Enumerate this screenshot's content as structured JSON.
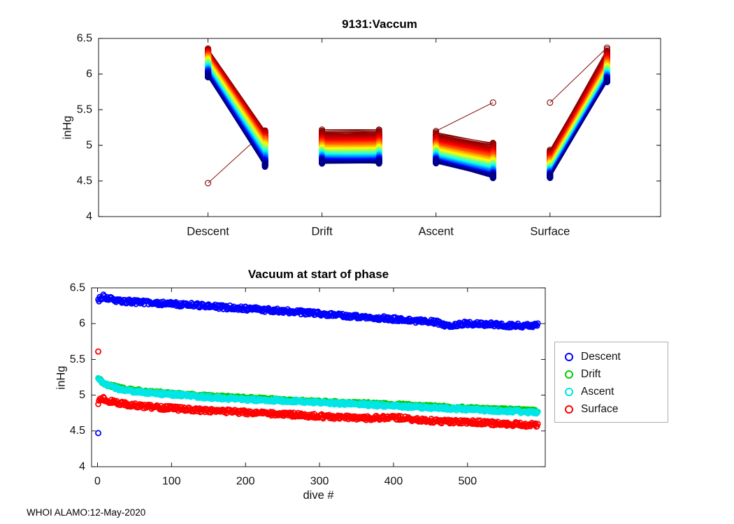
{
  "page": {
    "footer": "WHOI ALAMO:12-May-2020",
    "background": "#ffffff"
  },
  "chart_data": [
    {
      "type": "line",
      "title": "9131:Vaccum",
      "ylabel": "inHg",
      "ylim": [
        4,
        6.5
      ],
      "yticks": [
        4,
        4.5,
        5,
        5.5,
        6,
        6.5
      ],
      "xlim": [
        0.04,
        4.97
      ],
      "xtick_positions": [
        1,
        2,
        3,
        4
      ],
      "xtick_labels": [
        "Descent",
        "Drift",
        "Ascent",
        "Surface"
      ],
      "n_dives": 600,
      "colormap": "jet reversed (dive 1 = dark red, last dive = dark blue)",
      "marker": "o",
      "jitter": 0.02,
      "phase_segments": [
        {
          "phase": "Descent",
          "x": [
            1,
            1.5
          ],
          "early": [
            6.35,
            5.2
          ],
          "late": [
            5.97,
            4.72
          ],
          "decay_exp": 0.8
        },
        {
          "phase": "Drift",
          "x": [
            2,
            2.5
          ],
          "early": [
            5.2,
            5.21
          ],
          "late": [
            4.76,
            4.76
          ],
          "decay_exp": 0.55
        },
        {
          "phase": "Ascent",
          "x": [
            3,
            3.5
          ],
          "early": [
            5.18,
            5.04
          ],
          "late": [
            4.76,
            4.56
          ],
          "decay_exp": 0.55
        },
        {
          "phase": "Surface",
          "x": [
            4,
            4.5
          ],
          "early": [
            4.94,
            6.35
          ],
          "late": [
            4.56,
            5.9
          ],
          "decay_exp": 0.55
        }
      ],
      "first_dive": {
        "Descent": [
          4.47,
          5.2
        ],
        "Drift": [
          5.22,
          5.22
        ],
        "Ascent": [
          5.2,
          5.6
        ],
        "Surface": [
          5.6,
          6.37
        ]
      }
    },
    {
      "type": "scatter",
      "title": "Vacuum at start of phase",
      "xlabel": "dive #",
      "ylabel": "inHg",
      "ylim": [
        4,
        6.5
      ],
      "yticks": [
        4,
        4.5,
        5,
        5.5,
        6,
        6.5
      ],
      "xlim": [
        -8,
        605
      ],
      "xticks": [
        0,
        100,
        200,
        300,
        400,
        500
      ],
      "n_dives": 595,
      "legend_position": "right-outside",
      "series": [
        {
          "name": "Descent",
          "color": "#0000FF",
          "jitter": 0.03,
          "trend": [
            [
              1,
              6.33
            ],
            [
              8,
              6.38
            ],
            [
              25,
              6.32
            ],
            [
              70,
              6.29
            ],
            [
              130,
              6.26
            ],
            [
              200,
              6.21
            ],
            [
              260,
              6.17
            ],
            [
              320,
              6.12
            ],
            [
              380,
              6.08
            ],
            [
              430,
              6.04
            ],
            [
              458,
              6.02
            ],
            [
              472,
              5.96
            ],
            [
              495,
              6.0
            ],
            [
              530,
              5.99
            ],
            [
              560,
              5.97
            ],
            [
              595,
              5.98
            ]
          ],
          "outliers": [
            [
              1,
              4.47
            ]
          ]
        },
        {
          "name": "Drift",
          "color": "#00CC00",
          "jitter": 0.02,
          "trend": [
            [
              1,
              5.23
            ],
            [
              10,
              5.16
            ],
            [
              30,
              5.1
            ],
            [
              60,
              5.06
            ],
            [
              100,
              5.02
            ],
            [
              150,
              4.99
            ],
            [
              200,
              4.96
            ],
            [
              260,
              4.93
            ],
            [
              320,
              4.9
            ],
            [
              380,
              4.88
            ],
            [
              440,
              4.85
            ],
            [
              500,
              4.82
            ],
            [
              550,
              4.8
            ],
            [
              595,
              4.78
            ]
          ],
          "outliers": []
        },
        {
          "name": "Ascent",
          "color": "#00E6E6",
          "jitter": 0.022,
          "trend": [
            [
              1,
              5.22
            ],
            [
              10,
              5.15
            ],
            [
              30,
              5.08
            ],
            [
              60,
              5.04
            ],
            [
              100,
              5.01
            ],
            [
              150,
              4.97
            ],
            [
              200,
              4.94
            ],
            [
              260,
              4.92
            ],
            [
              320,
              4.89
            ],
            [
              380,
              4.86
            ],
            [
              440,
              4.83
            ],
            [
              500,
              4.8
            ],
            [
              550,
              4.78
            ],
            [
              595,
              4.76
            ]
          ],
          "outliers": []
        },
        {
          "name": "Surface",
          "color": "#FF0000",
          "jitter": 0.03,
          "trend": [
            [
              1,
              4.88
            ],
            [
              5,
              4.96
            ],
            [
              15,
              4.92
            ],
            [
              40,
              4.87
            ],
            [
              80,
              4.83
            ],
            [
              140,
              4.79
            ],
            [
              200,
              4.76
            ],
            [
              260,
              4.73
            ],
            [
              310,
              4.7
            ],
            [
              360,
              4.68
            ],
            [
              400,
              4.69
            ],
            [
              430,
              4.66
            ],
            [
              470,
              4.63
            ],
            [
              510,
              4.62
            ],
            [
              550,
              4.6
            ],
            [
              595,
              4.58
            ]
          ],
          "outliers": [
            [
              1,
              5.61
            ]
          ]
        }
      ]
    }
  ]
}
